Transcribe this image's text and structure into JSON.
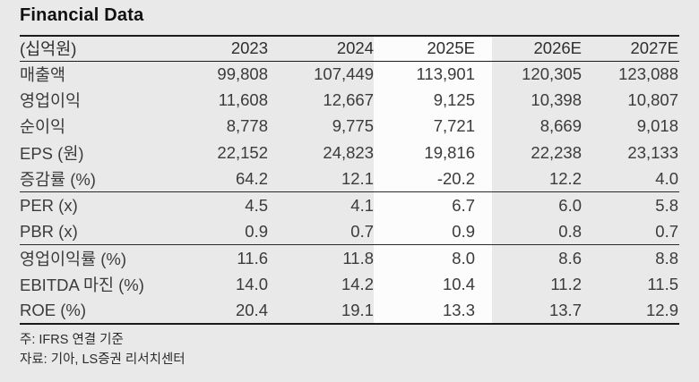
{
  "title": "Financial Data",
  "table": {
    "unit_label": "(십억원)",
    "columns": [
      "2023",
      "2024",
      "2025E",
      "2026E",
      "2027E"
    ],
    "highlighted_column": "2025E",
    "groups": [
      {
        "name": "income",
        "rows": [
          {
            "label": "매출액",
            "values": [
              "99,808",
              "107,449",
              "113,901",
              "120,305",
              "123,088"
            ]
          },
          {
            "label": "영업이익",
            "values": [
              "11,608",
              "12,667",
              "9,125",
              "10,398",
              "10,807"
            ]
          },
          {
            "label": "순이익",
            "values": [
              "8,778",
              "9,775",
              "7,721",
              "8,669",
              "9,018"
            ]
          },
          {
            "label": "EPS (원)",
            "values": [
              "22,152",
              "24,823",
              "19,816",
              "22,238",
              "23,133"
            ]
          },
          {
            "label": "증감률 (%)",
            "values": [
              "64.2",
              "12.1",
              "-20.2",
              "12.2",
              "4.0"
            ]
          }
        ]
      },
      {
        "name": "valuation",
        "rows": [
          {
            "label": "PER (x)",
            "values": [
              "4.5",
              "4.1",
              "6.7",
              "6.0",
              "5.8"
            ]
          },
          {
            "label": "PBR (x)",
            "values": [
              "0.9",
              "0.7",
              "0.9",
              "0.8",
              "0.7"
            ]
          }
        ]
      },
      {
        "name": "profitability",
        "rows": [
          {
            "label": "영업이익률 (%)",
            "values": [
              "11.6",
              "11.8",
              "8.0",
              "8.6",
              "8.8"
            ]
          },
          {
            "label": "EBITDA 마진 (%)",
            "values": [
              "14.0",
              "14.2",
              "10.4",
              "11.2",
              "11.5"
            ]
          },
          {
            "label": "ROE (%)",
            "values": [
              "20.4",
              "19.1",
              "13.3",
              "13.7",
              "12.9"
            ]
          }
        ]
      }
    ]
  },
  "notes": [
    "주: IFRS 연결 기준",
    "자료: 기아, LS증권 리서치센터"
  ],
  "colors": {
    "page_bg": "#e9e9e9",
    "highlight_bg": "#fcfcfc",
    "rule": "#1b1b1b",
    "text": "#3b3b3b"
  }
}
